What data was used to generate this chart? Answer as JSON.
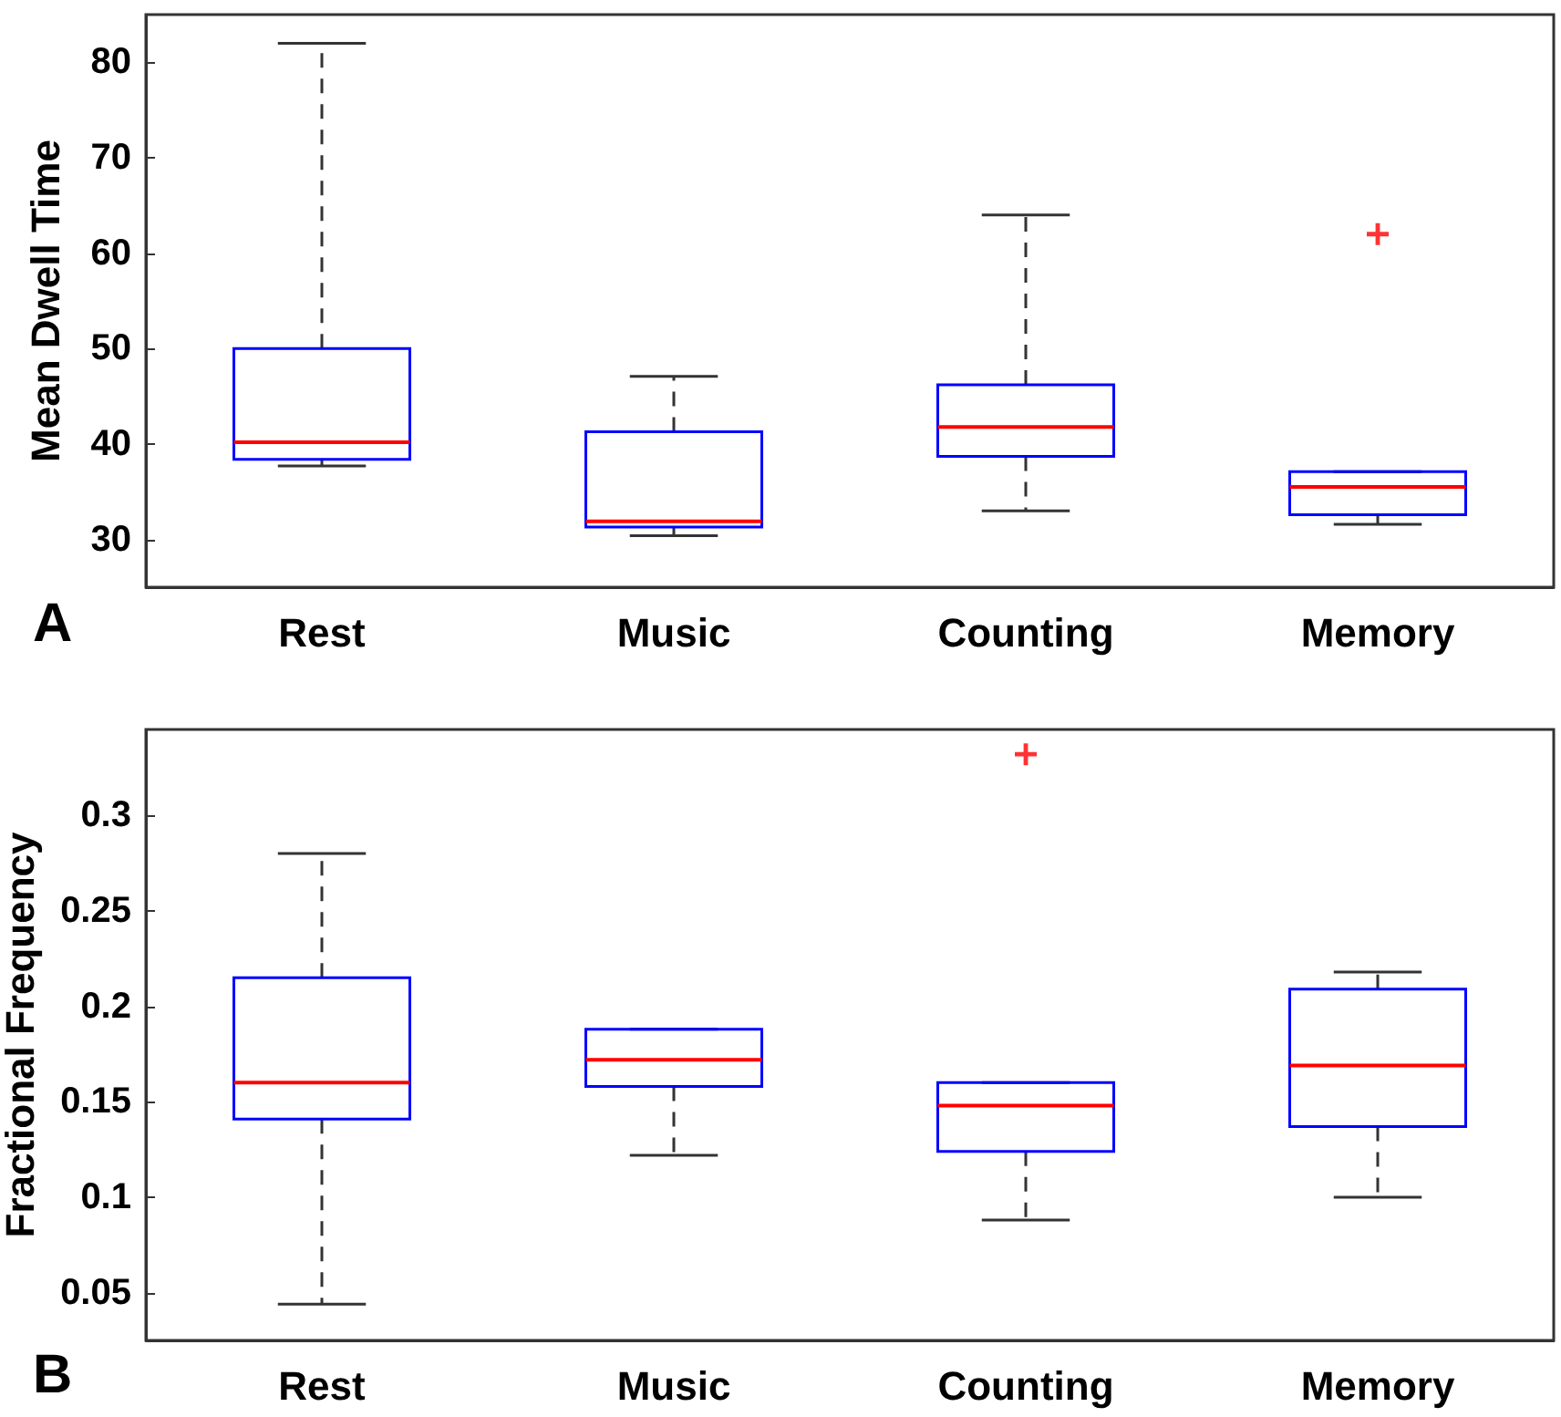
{
  "chart_data": [
    {
      "type": "box",
      "ylabel": "Mean Dwell Time",
      "annotations": [
        "A"
      ],
      "categories": [
        "Rest",
        "Music",
        "Counting",
        "Memory"
      ],
      "ylim": [
        25,
        85
      ],
      "yticks": [
        30,
        40,
        50,
        60,
        70,
        80
      ],
      "grid": false,
      "series": [
        {
          "color": "#0000ff",
          "boxes": [
            {
              "low": 37.7,
              "q1": 38.4,
              "median": 40.2,
              "q3": 50,
              "high": 82
            },
            {
              "low": 30.4,
              "q1": 31.3,
              "median": 31.9,
              "q3": 41.3,
              "high": 47.1
            },
            {
              "low": 33,
              "q1": 38.7,
              "median": 41.8,
              "q3": 46.2,
              "high": 64
            },
            {
              "low": 31.6,
              "q1": 32.6,
              "median": 35.5,
              "q3": 37.1,
              "high": 37.1,
              "outliers": [
                62
              ]
            }
          ]
        }
      ]
    },
    {
      "type": "box",
      "ylabel": "Fractional Frequency",
      "annotations": [
        "B"
      ],
      "categories": [
        "Rest",
        "Music",
        "Counting",
        "Memory"
      ],
      "ylim": [
        0.025,
        0.345
      ],
      "yticks": [
        0.05,
        0.1,
        0.15,
        0.2,
        0.25,
        0.3
      ],
      "grid": false,
      "series": [
        {
          "color": "#0000ff",
          "boxes": [
            {
              "low": 0.044,
              "q1": 0.141,
              "median": 0.16,
              "q3": 0.215,
              "high": 0.28
            },
            {
              "low": 0.122,
              "q1": 0.158,
              "median": 0.172,
              "q3": 0.188,
              "high": 0.188
            },
            {
              "low": 0.088,
              "q1": 0.124,
              "median": 0.148,
              "q3": 0.16,
              "high": 0.16,
              "outliers": [
                0.332
              ]
            },
            {
              "low": 0.1,
              "q1": 0.137,
              "median": 0.169,
              "q3": 0.209,
              "high": 0.218
            }
          ]
        }
      ]
    }
  ]
}
